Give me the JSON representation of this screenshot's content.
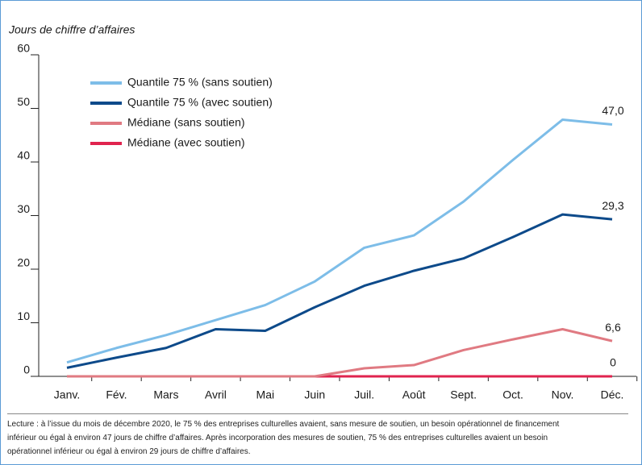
{
  "chart_data": {
    "type": "line",
    "y_axis_label": "Jours de chiffre d’affaires",
    "categories": [
      "Janv.",
      "Fév.",
      "Mars",
      "Avril",
      "Mai",
      "Juin",
      "Juil.",
      "Août",
      "Sept.",
      "Oct.",
      "Nov.",
      "Déc."
    ],
    "series": [
      {
        "name": "Quantile 75 % (sans soutien)",
        "color": "#7dbde8",
        "values": [
          2.6,
          5.3,
          7.7,
          10.5,
          13.3,
          17.7,
          24.0,
          26.3,
          32.6,
          40.4,
          47.9,
          47.0
        ],
        "value_labels": [
          null,
          null,
          null,
          null,
          null,
          null,
          null,
          null,
          null,
          null,
          null,
          "47,0"
        ]
      },
      {
        "name": "Quantile 75 % (avec soutien)",
        "color": "#0d4a8a",
        "values": [
          1.6,
          3.5,
          5.3,
          8.8,
          8.5,
          12.9,
          16.9,
          19.7,
          22.0,
          26.0,
          30.2,
          29.3
        ],
        "value_labels": [
          null,
          null,
          null,
          null,
          null,
          null,
          null,
          null,
          null,
          null,
          null,
          "29,3"
        ]
      },
      {
        "name": "Médiane (sans soutien)",
        "color": "#e07a82",
        "values": [
          0,
          0,
          0,
          0,
          0,
          0,
          1.5,
          2.1,
          4.9,
          6.9,
          8.8,
          6.6
        ],
        "value_labels": [
          null,
          null,
          null,
          null,
          null,
          null,
          null,
          null,
          null,
          null,
          null,
          "6,6"
        ]
      },
      {
        "name": "Médiane (avec soutien)",
        "color": "#e0234e",
        "values": [
          0,
          0,
          0,
          0,
          0,
          0,
          0,
          0,
          0,
          0,
          0,
          0
        ],
        "value_labels": [
          null,
          null,
          null,
          null,
          null,
          null,
          null,
          null,
          null,
          null,
          null,
          "0"
        ]
      }
    ],
    "ylim": [
      0,
      60
    ],
    "yticks": [
      0,
      10,
      20,
      30,
      40,
      50,
      60
    ],
    "note": [
      "Lecture : à l’issue du mois de décembre 2020, le 75 % des entreprises culturelles avaient, sans mesure de soutien, un besoin opérationnel de financement",
      "inférieur ou égal à environ 47 jours de chiffre d’affaires. Après incorporation des mesures de soutien, 75 % des entreprises culturelles avaient un besoin",
      "opérationnel inférieur ou égal à environ 29 jours de chiffre d’affaires."
    ]
  }
}
